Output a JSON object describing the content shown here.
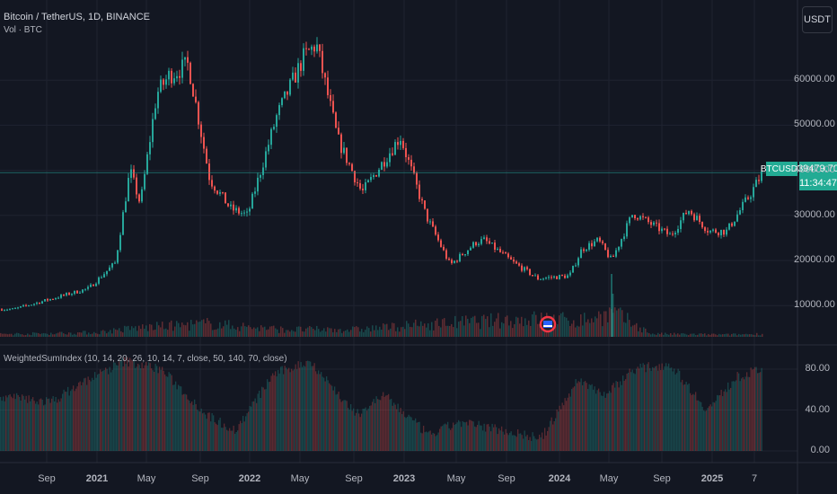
{
  "header": {
    "symbol_title": "Bitcoin / TetherUS, 1D, BINANCE",
    "volume_title": "Vol · BTC",
    "currency_button": "USDT"
  },
  "indicator": {
    "title": "WeightedSumIndex (10, 14, 20, 26, 10, 14, 7, close, 50, 140, 70, close)"
  },
  "last_price": {
    "symbol": "BTCUSDT",
    "value": "39479.70",
    "countdown": "11:34:47"
  },
  "colors": {
    "background": "#131722",
    "up": "#26a69a",
    "down": "#ef5350",
    "grid": "#1f2330",
    "price_line": "#26a69a"
  },
  "icons": {
    "event_marker": "us-flag-icon"
  },
  "chart_data": [
    {
      "type": "candlestick",
      "title": "Bitcoin / TetherUS, 1D, BINANCE",
      "x_tick_labels": [
        "Sep",
        "2021",
        "May",
        "Sep",
        "2022",
        "May",
        "Sep",
        "2023",
        "May",
        "Sep",
        "2024",
        "May",
        "Sep",
        "2025",
        "7"
      ],
      "y_tick_labels": [
        "60000.00",
        "50000.00",
        "40000.00",
        "30000.00",
        "20000.00",
        "10000.00"
      ],
      "ylim": [
        5000,
        68500
      ],
      "grid": true,
      "series": [
        {
          "name": "BTCUSDT close (approx)",
          "x": [
            "2020-07-01",
            "2020-09-01",
            "2020-11-01",
            "2020-12-15",
            "2021-01-08",
            "2021-01-25",
            "2021-02-21",
            "2021-03-13",
            "2021-04-14",
            "2021-05-19",
            "2021-06-22",
            "2021-07-20",
            "2021-09-06",
            "2021-10-20",
            "2021-11-10",
            "2021-12-15",
            "2022-01-24",
            "2022-03-28",
            "2022-05-09",
            "2022-06-18",
            "2022-07-30",
            "2022-08-13",
            "2022-09-30",
            "2022-11-09",
            "2022-12-31",
            "2023-01-20",
            "2023-02-16",
            "2023-03-10",
            "2023-04-14",
            "2023-06-15",
            "2023-07-14",
            "2023-08-17",
            "2023-09-15",
            "2023-10-23",
            "2023-11-13"
          ],
          "values": [
            9200,
            11500,
            13800,
            19500,
            40000,
            32500,
            57000,
            61000,
            63500,
            38000,
            31500,
            30000,
            52000,
            65000,
            68000,
            47000,
            35000,
            47500,
            30000,
            19000,
            24000,
            24500,
            19500,
            16000,
            16600,
            22500,
            24500,
            20000,
            30500,
            25500,
            31300,
            26500,
            26500,
            34500,
            39479.7
          ]
        }
      ]
    },
    {
      "type": "bar",
      "title": "Vol · BTC",
      "note": "volume histogram overlaid at the bottom of the price pane",
      "series": [
        {
          "name": "Volume",
          "x": [
            "2020-07",
            "2020-11",
            "2021-01",
            "2021-05",
            "2021-09",
            "2022-01",
            "2022-06",
            "2022-11",
            "2023-01",
            "2023-03",
            "2023-05",
            "2023-09",
            "2023-11"
          ],
          "values": [
            0.4,
            0.6,
            1.2,
            1.8,
            1.0,
            1.0,
            1.9,
            2.5,
            2.2,
            3.2,
            0.4,
            0.3,
            0.4
          ]
        }
      ]
    },
    {
      "type": "area",
      "title": "WeightedSumIndex (10, 14, 20, 26, 10, 14, 7, close, 50, 140, 70, close)",
      "y_tick_labels": [
        "80.00",
        "40.00",
        "0.00"
      ],
      "ylim": [
        0,
        100
      ],
      "series": [
        {
          "name": "WeightedSumIndex",
          "x": [
            "2020-07-01",
            "2020-09-01",
            "2020-11-01",
            "2021-01-01",
            "2021-03-01",
            "2021-05-15",
            "2021-07-01",
            "2021-09-01",
            "2021-11-01",
            "2022-01-15",
            "2022-03-01",
            "2022-05-15",
            "2022-07-01",
            "2022-09-01",
            "2022-11-15",
            "2023-01-15",
            "2023-03-01",
            "2023-04-15",
            "2023-06-15",
            "2023-08-15",
            "2023-10-01",
            "2023-11-13"
          ],
          "values": [
            52,
            48,
            70,
            88,
            80,
            35,
            20,
            75,
            88,
            35,
            55,
            15,
            28,
            22,
            12,
            70,
            55,
            80,
            85,
            40,
            72,
            80
          ]
        }
      ]
    }
  ]
}
